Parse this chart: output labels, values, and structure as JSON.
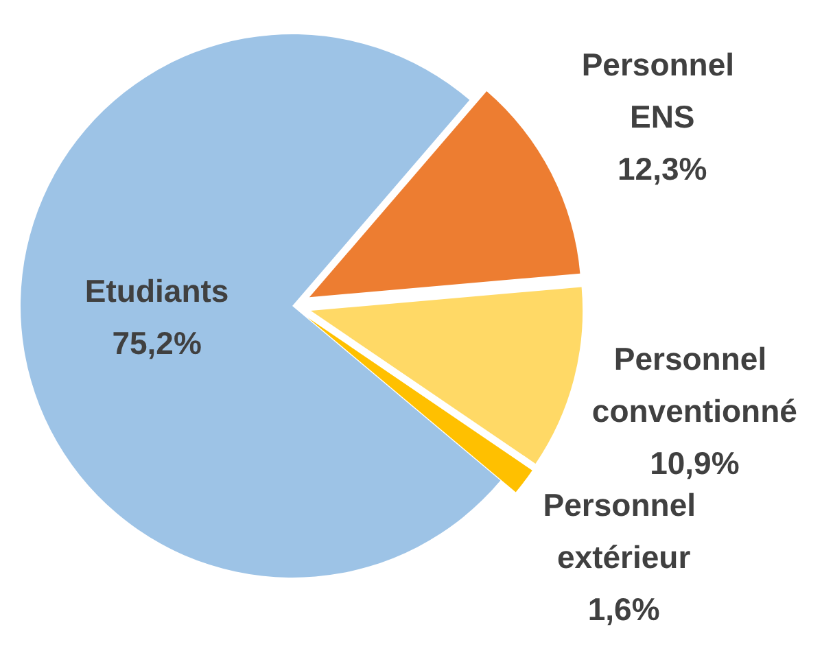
{
  "chart_data": {
    "type": "pie",
    "categories": [
      "Etudiants",
      "Personnel ENS",
      "Personnel conventionné",
      "Personnel extérieur"
    ],
    "values": [
      75.2,
      12.3,
      10.9,
      1.6
    ],
    "value_labels": [
      "75,2%",
      "12,3%",
      "10,9%",
      "1,6%"
    ],
    "colors": [
      "#9dc3e6",
      "#ed7d31",
      "#ffd966",
      "#ffc000"
    ]
  }
}
